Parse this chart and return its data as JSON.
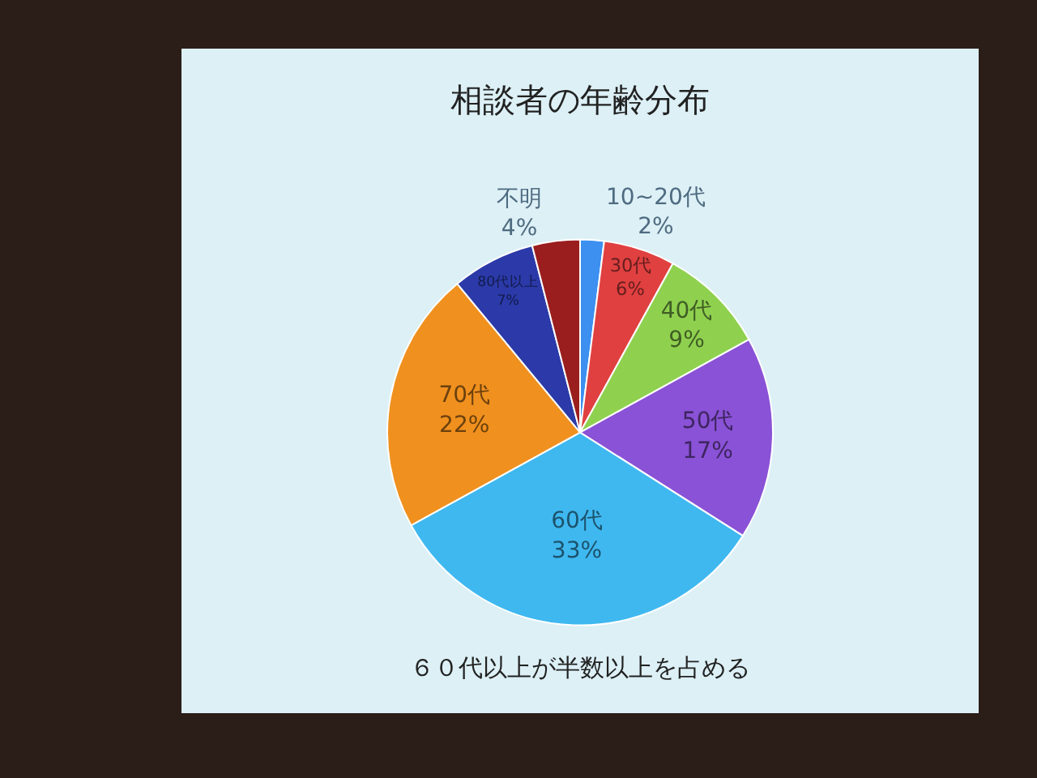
{
  "chart_data": {
    "type": "pie",
    "title": "相談者の年齢分布",
    "categories": [
      "10~20代",
      "30代",
      "40代",
      "50代",
      "60代",
      "70代",
      "80代以上",
      "不明"
    ],
    "values": [
      2,
      6,
      9,
      17,
      33,
      22,
      7,
      4
    ],
    "value_labels": [
      "2%",
      "6%",
      "9%",
      "17%",
      "33%",
      "22%",
      "7%",
      "4%"
    ],
    "colors": [
      "#3d8ff0",
      "#e04040",
      "#8fd14f",
      "#8a52d6",
      "#3fb8f0",
      "#f0901e",
      "#2b3aa8",
      "#9a1e1e"
    ],
    "annotations": [
      "６０代以上が半数以上を占める"
    ]
  }
}
